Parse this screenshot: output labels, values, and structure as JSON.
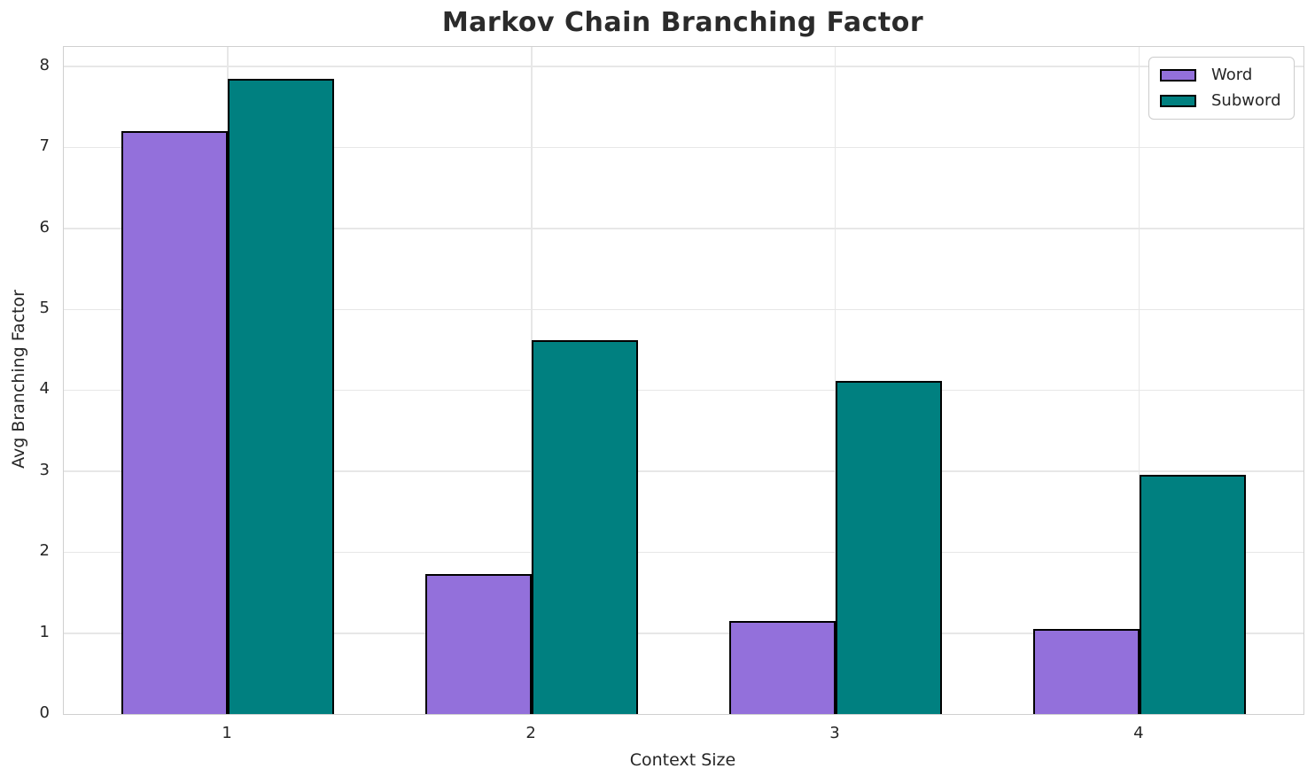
{
  "title": "Markov Chain Branching Factor",
  "chart_data": {
    "type": "bar",
    "title": "Markov Chain Branching Factor",
    "xlabel": "Context Size",
    "ylabel": "Avg Branching Factor",
    "categories": [
      "1",
      "2",
      "3",
      "4"
    ],
    "series": [
      {
        "name": "Word",
        "color": "#9370DB",
        "values": [
          7.2,
          1.73,
          1.15,
          1.05
        ]
      },
      {
        "name": "Subword",
        "color": "#008080",
        "values": [
          7.85,
          4.62,
          4.12,
          2.95
        ]
      }
    ],
    "yticks": [
      0,
      1,
      2,
      3,
      4,
      5,
      6,
      7,
      8
    ],
    "ylim": [
      0,
      8.24
    ],
    "xlim": [
      0.46,
      4.54
    ],
    "bar_width_frac": 0.35,
    "bar_edge_color": "#000000",
    "grid": true,
    "legend_position": "upper right",
    "legend_labels": [
      "Word",
      "Subword"
    ],
    "background": "#ffffff",
    "text_color": "#262626",
    "title_color": "#2b2b2b"
  }
}
